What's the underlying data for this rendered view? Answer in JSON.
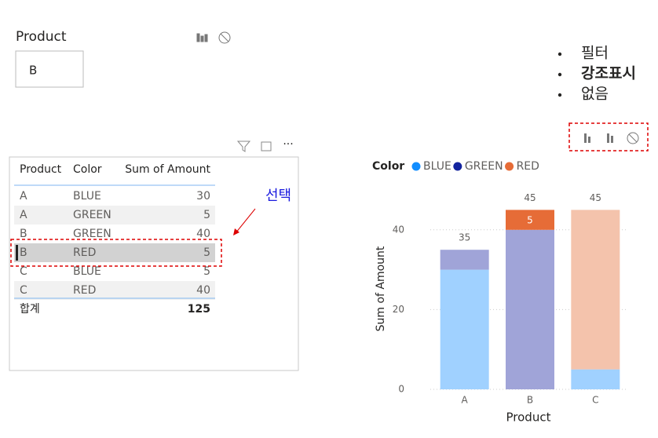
{
  "slicer": {
    "title": "Product",
    "value": "B"
  },
  "notes": {
    "items": [
      "필터",
      "강조표시",
      "없음"
    ],
    "bold_index": 1
  },
  "table": {
    "headers": [
      "Product",
      "Color",
      "Sum of Amount"
    ],
    "rows": [
      [
        "A",
        "BLUE",
        30
      ],
      [
        "A",
        "GREEN",
        5
      ],
      [
        "B",
        "GREEN",
        40
      ],
      [
        "B",
        "RED",
        5
      ],
      [
        "C",
        "BLUE",
        5
      ],
      [
        "C",
        "RED",
        40
      ]
    ],
    "selected_row": 3,
    "total": {
      "label": "합계",
      "value": 125
    }
  },
  "annotation": "선택",
  "chart_data": {
    "type": "stacked_bar",
    "legend_title": "Color",
    "x_label": "Product",
    "y_label": "Sum of Amount",
    "categories": [
      "A",
      "B",
      "C"
    ],
    "series": [
      {
        "name": "BLUE",
        "color": "#118DFF",
        "bar_colors": [
          "#A0D1FF",
          "#A0D1FF",
          "#A0D1FF"
        ],
        "values": [
          30,
          null,
          5
        ]
      },
      {
        "name": "GREEN",
        "color": "#12239E",
        "bar_colors": [
          "#A0A4D8",
          "#A0A4D8",
          "#A0A4D8"
        ],
        "values": [
          5,
          40,
          null
        ]
      },
      {
        "name": "RED",
        "color": "#E66C37",
        "bar_colors": [
          "#F4C3AC",
          "#E66C37",
          "#F4C3AC"
        ],
        "values": [
          null,
          5,
          40
        ]
      }
    ],
    "totals": [
      35,
      45,
      45
    ],
    "ylim": [
      0,
      50
    ],
    "yticks": [
      0,
      20,
      40
    ],
    "grid": true
  }
}
